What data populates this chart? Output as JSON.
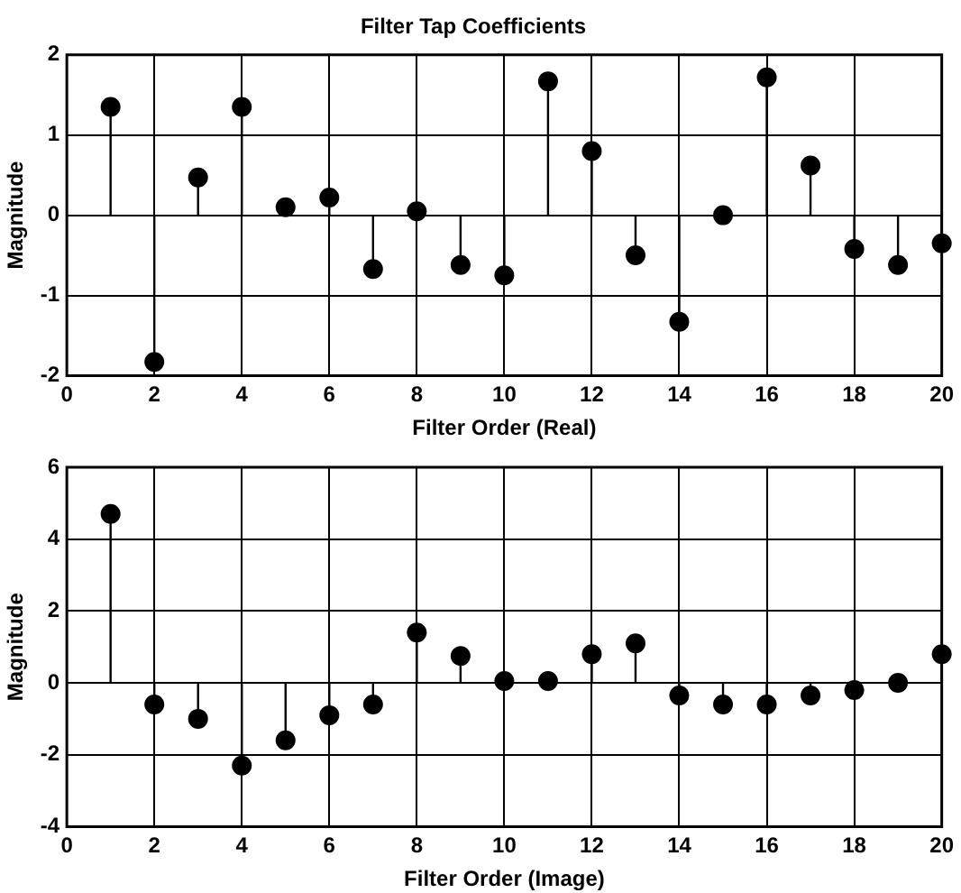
{
  "chart_data": [
    {
      "type": "lollipop",
      "title": "Filter Tap Coefficients",
      "xlabel": "Filter Order (Real)",
      "ylabel": "Magnitude",
      "x": [
        1,
        2,
        3,
        4,
        5,
        6,
        7,
        8,
        9,
        10,
        11,
        12,
        13,
        14,
        15,
        16,
        17,
        18,
        19,
        20
      ],
      "series": [
        {
          "color": "#000000",
          "values": [
            1.35,
            -1.83,
            0.47,
            1.35,
            0.1,
            0.22,
            -0.67,
            0.05,
            -0.62,
            -0.75,
            1.67,
            0.8,
            -0.5,
            -1.33,
            0,
            1.72,
            0.62,
            -0.42,
            -0.62,
            -0.35
          ]
        }
      ],
      "xlim": [
        0,
        20
      ],
      "xticks": [
        0,
        2,
        4,
        6,
        8,
        10,
        12,
        14,
        16,
        18,
        20
      ],
      "ylim": [
        -2,
        2
      ],
      "yticks": [
        -2,
        -1,
        0,
        1,
        2
      ],
      "grid": true,
      "marker": "circle",
      "legend": false
    },
    {
      "type": "lollipop",
      "xlabel": "Filter Order (Image)",
      "ylabel": "Magnitude",
      "x": [
        1,
        2,
        3,
        4,
        5,
        6,
        7,
        8,
        9,
        10,
        11,
        12,
        13,
        14,
        15,
        16,
        17,
        18,
        19,
        20
      ],
      "series": [
        {
          "color": "#000000",
          "values": [
            4.7,
            -0.6,
            -1,
            -2.3,
            -1.6,
            -0.9,
            -0.6,
            1.4,
            0.75,
            0.05,
            0.05,
            0.8,
            1.1,
            -0.35,
            -0.6,
            -0.6,
            -0.35,
            -0.2,
            0,
            0.8
          ]
        }
      ],
      "xlim": [
        0,
        20
      ],
      "xticks": [
        0,
        2,
        4,
        6,
        8,
        10,
        12,
        14,
        16,
        18,
        20
      ],
      "ylim": [
        -4,
        6
      ],
      "yticks": [
        -4,
        -2,
        0,
        2,
        4,
        6
      ],
      "grid": true,
      "marker": "circle",
      "legend": false
    }
  ]
}
